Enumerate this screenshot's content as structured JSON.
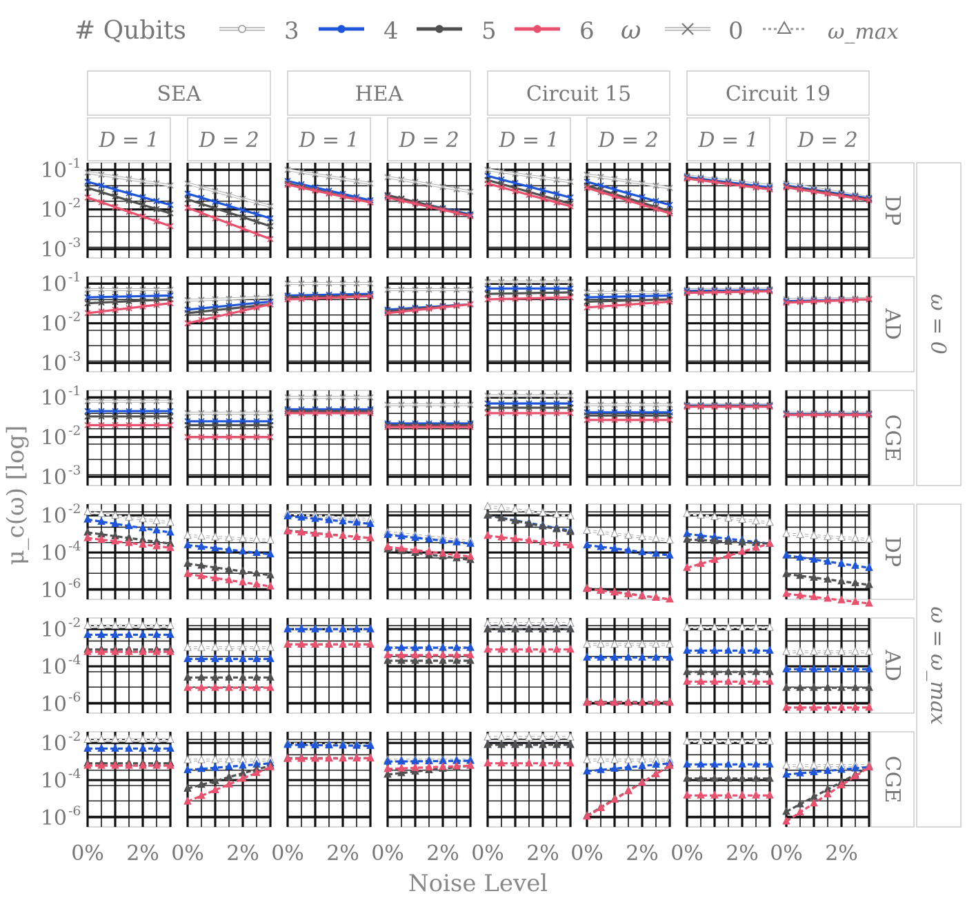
{
  "legend": {
    "qubits_label": "# Qubits",
    "qubit_entries": [
      {
        "label": "3",
        "color": "#ffffff",
        "edge": "#9a9a9a"
      },
      {
        "label": "4",
        "color": "#1f55d8",
        "edge": "#1f55d8"
      },
      {
        "label": "5",
        "color": "#505050",
        "edge": "#505050"
      },
      {
        "label": "6",
        "color": "#e8526e",
        "edge": "#e8526e"
      }
    ],
    "omega_label": "ω",
    "omega_entries": [
      {
        "label": "0",
        "style": "solid",
        "marker": "x"
      },
      {
        "label": "ω_max",
        "style": "dashed",
        "marker": "triangle"
      }
    ]
  },
  "strips": {
    "ansatz": [
      "SEA",
      "HEA",
      "Circuit 15",
      "Circuit 19"
    ],
    "depth": [
      "D = 1",
      "D = 2"
    ],
    "noise": [
      "DP",
      "AD",
      "CGE"
    ],
    "omega_groups": [
      "ω = 0",
      "ω = ω_max"
    ]
  },
  "axes": {
    "xlabel": "Noise Level",
    "ylabel": "μ_c(ω) [log]",
    "xticks": [
      "0%",
      "2%"
    ],
    "yticks_top": [
      "10-1",
      "10-2",
      "10-3"
    ],
    "yticks_bottom": [
      "10-2",
      "10-4",
      "10-6"
    ]
  },
  "chart_data": {
    "type": "line",
    "x": [
      0,
      0.5,
      1,
      1.5,
      2,
      2.5,
      3
    ],
    "x_unit": "%",
    "xlim": [
      0,
      3
    ],
    "ylim_top": [
      0.0006,
      0.15
    ],
    "ylim_bottom": [
      3e-07,
      0.04
    ],
    "log_y": true,
    "qubits": [
      "3",
      "4",
      "5",
      "6"
    ],
    "rows": [
      "DP_0",
      "AD_0",
      "CGE_0",
      "DP_max",
      "AD_max",
      "CGE_max"
    ],
    "columns": [
      "SEA_1",
      "SEA_2",
      "HEA_1",
      "HEA_2",
      "C15_1",
      "C15_2",
      "C19_1",
      "C19_2"
    ],
    "series": {
      "DP_0": {
        "SEA_1": [
          [
            0.085,
            0.04
          ],
          [
            0.05,
            0.013
          ],
          [
            0.035,
            0.008
          ],
          [
            0.02,
            0.0038
          ]
        ],
        "SEA_2": [
          [
            0.045,
            0.012
          ],
          [
            0.025,
            0.006
          ],
          [
            0.018,
            0.0038
          ],
          [
            0.011,
            0.0018
          ]
        ],
        "HEA_1": [
          [
            0.1,
            0.045
          ],
          [
            0.052,
            0.017
          ],
          [
            0.045,
            0.015
          ],
          [
            0.042,
            0.015
          ]
        ],
        "HEA_2": [
          [
            0.065,
            0.028
          ],
          [
            0.022,
            0.0075
          ],
          [
            0.023,
            0.007
          ],
          [
            0.02,
            0.0068
          ]
        ],
        "C15_1": [
          [
            0.1,
            0.05
          ],
          [
            0.07,
            0.02
          ],
          [
            0.055,
            0.014
          ],
          [
            0.045,
            0.012
          ]
        ],
        "C15_2": [
          [
            0.075,
            0.035
          ],
          [
            0.05,
            0.013
          ],
          [
            0.04,
            0.009
          ],
          [
            0.035,
            0.008
          ]
        ],
        "C19_1": [
          [
            0.07,
            0.04
          ],
          [
            0.065,
            0.036
          ],
          [
            0.062,
            0.033
          ],
          [
            0.06,
            0.032
          ]
        ],
        "C19_2": [
          [
            0.045,
            0.02
          ],
          [
            0.04,
            0.019
          ],
          [
            0.038,
            0.018
          ],
          [
            0.036,
            0.017
          ]
        ]
      },
      "AD_0": {
        "SEA_1": [
          [
            0.07,
            0.07
          ],
          [
            0.045,
            0.05
          ],
          [
            0.032,
            0.04
          ],
          [
            0.018,
            0.032
          ]
        ],
        "SEA_2": [
          [
            0.038,
            0.045
          ],
          [
            0.022,
            0.035
          ],
          [
            0.018,
            0.03
          ],
          [
            0.01,
            0.03
          ]
        ],
        "HEA_1": [
          [
            0.1,
            0.1
          ],
          [
            0.05,
            0.055
          ],
          [
            0.045,
            0.05
          ],
          [
            0.04,
            0.048
          ]
        ],
        "HEA_2": [
          [
            0.07,
            0.07
          ],
          [
            0.022,
            0.03
          ],
          [
            0.02,
            0.03
          ],
          [
            0.018,
            0.03
          ]
        ],
        "C15_1": [
          [
            0.11,
            0.11
          ],
          [
            0.075,
            0.075
          ],
          [
            0.055,
            0.06
          ],
          [
            0.04,
            0.045
          ]
        ],
        "C15_2": [
          [
            0.06,
            0.06
          ],
          [
            0.045,
            0.05
          ],
          [
            0.035,
            0.04
          ],
          [
            0.025,
            0.035
          ]
        ],
        "C19_1": [
          [
            0.07,
            0.072
          ],
          [
            0.065,
            0.068
          ],
          [
            0.06,
            0.065
          ],
          [
            0.058,
            0.064
          ]
        ],
        "C19_2": [
          [
            0.04,
            0.042
          ],
          [
            0.036,
            0.04
          ],
          [
            0.034,
            0.04
          ],
          [
            0.033,
            0.04
          ]
        ]
      },
      "CGE_0": {
        "SEA_1": [
          [
            0.08,
            0.08
          ],
          [
            0.045,
            0.045
          ],
          [
            0.033,
            0.033
          ],
          [
            0.02,
            0.02
          ]
        ],
        "SEA_2": [
          [
            0.04,
            0.04
          ],
          [
            0.025,
            0.025
          ],
          [
            0.02,
            0.02
          ],
          [
            0.01,
            0.01
          ]
        ],
        "HEA_1": [
          [
            0.1,
            0.1
          ],
          [
            0.05,
            0.05
          ],
          [
            0.045,
            0.045
          ],
          [
            0.04,
            0.04
          ]
        ],
        "HEA_2": [
          [
            0.065,
            0.065
          ],
          [
            0.022,
            0.022
          ],
          [
            0.02,
            0.02
          ],
          [
            0.018,
            0.018
          ]
        ],
        "C15_1": [
          [
            0.11,
            0.11
          ],
          [
            0.07,
            0.07
          ],
          [
            0.055,
            0.055
          ],
          [
            0.04,
            0.04
          ]
        ],
        "C15_2": [
          [
            0.065,
            0.065
          ],
          [
            0.042,
            0.042
          ],
          [
            0.035,
            0.035
          ],
          [
            0.027,
            0.027
          ]
        ],
        "C19_1": [
          [
            0.065,
            0.065
          ],
          [
            0.062,
            0.062
          ],
          [
            0.06,
            0.06
          ],
          [
            0.058,
            0.058
          ]
        ],
        "C19_2": [
          [
            0.04,
            0.04
          ],
          [
            0.038,
            0.038
          ],
          [
            0.037,
            0.037
          ],
          [
            0.036,
            0.036
          ]
        ]
      },
      "DP_max": {
        "SEA_1": [
          [
            0.015,
            0.004
          ],
          [
            0.006,
            0.0012
          ],
          [
            0.0012,
            0.0003
          ],
          [
            0.0006,
            0.00018
          ]
        ],
        "SEA_2": [
          [
            0.0008,
            0.00045
          ],
          [
            0.00025,
            8e-05
          ],
          [
            2.5e-05,
            6e-06
          ],
          [
            7e-06,
            1.5e-06
          ]
        ],
        "HEA_1": [
          [
            0.012,
            0.006
          ],
          [
            0.009,
            0.0035
          ],
          [
            0.0015,
            0.0006
          ],
          [
            0.0014,
            0.0006
          ]
        ],
        "HEA_2": [
          [
            0.0012,
            0.0004
          ],
          [
            0.0009,
            0.0003
          ],
          [
            0.00015,
            4e-05
          ],
          [
            0.0002,
            6e-05
          ]
        ],
        "C15_1": [
          [
            0.03,
            0.009
          ],
          [
            0.01,
            0.0015
          ],
          [
            0.01,
            0.0013
          ],
          [
            0.0008,
            0.00025
          ]
        ],
        "C15_2": [
          [
            0.0015,
            0.00045
          ],
          [
            0.00025,
            7e-05
          ],
          [
            1.2e-06,
            3e-07
          ],
          [
            1.1e-06,
            3e-07
          ]
        ],
        "C19_1": [
          [
            0.012,
            0.004
          ],
          [
            0.001,
            0.0003
          ],
          [
            0.0005,
            0.0003
          ],
          [
            1.5e-05,
            0.0003
          ]
        ],
        "C19_2": [
          [
            0.001,
            0.0005
          ],
          [
            7e-05,
            1.5e-05
          ],
          [
            7e-06,
            1.8e-06
          ],
          [
            6e-07,
            1.8e-07
          ]
        ]
      },
      "AD_max": {
        "SEA_1": [
          [
            0.015,
            0.015
          ],
          [
            0.005,
            0.005
          ],
          [
            0.0008,
            0.0008
          ],
          [
            0.0006,
            0.0006
          ]
        ],
        "SEA_2": [
          [
            0.001,
            0.001
          ],
          [
            0.00025,
            0.00025
          ],
          [
            2.5e-05,
            2.5e-05
          ],
          [
            7e-06,
            7e-06
          ]
        ],
        "HEA_1": [
          [
            0.01,
            0.01
          ],
          [
            0.01,
            0.01
          ],
          [
            0.0015,
            0.0015
          ],
          [
            0.0015,
            0.0015
          ]
        ],
        "HEA_2": [
          [
            0.001,
            0.001
          ],
          [
            0.001,
            0.001
          ],
          [
            0.0002,
            0.0002
          ],
          [
            0.0004,
            0.0004
          ]
        ],
        "C15_1": [
          [
            0.02,
            0.02
          ],
          [
            0.01,
            0.01
          ],
          [
            0.01,
            0.01
          ],
          [
            0.0008,
            0.0008
          ]
        ],
        "C15_2": [
          [
            0.0015,
            0.0015
          ],
          [
            0.0003,
            0.0003
          ],
          [
            1.2e-06,
            1.2e-06
          ],
          [
            1.1e-06,
            1.1e-06
          ]
        ],
        "C19_1": [
          [
            0.012,
            0.012
          ],
          [
            0.0007,
            0.0007
          ],
          [
            5e-05,
            5e-05
          ],
          [
            1.5e-05,
            1.5e-05
          ]
        ],
        "C19_2": [
          [
            0.0006,
            0.0006
          ],
          [
            7e-05,
            7e-05
          ],
          [
            7e-06,
            7e-06
          ],
          [
            6e-07,
            6e-07
          ]
        ]
      },
      "CGE_max": {
        "SEA_1": [
          [
            0.015,
            0.015
          ],
          [
            0.005,
            0.005
          ],
          [
            0.0008,
            0.0008
          ],
          [
            0.0006,
            0.0006
          ]
        ],
        "SEA_2": [
          [
            0.0012,
            0.0012
          ],
          [
            0.00035,
            0.0008
          ],
          [
            3.5e-05,
            0.0006
          ],
          [
            7e-06,
            0.0005
          ]
        ],
        "HEA_1": [
          [
            0.009,
            0.008
          ],
          [
            0.008,
            0.007
          ],
          [
            0.0015,
            0.0015
          ],
          [
            0.0014,
            0.0015
          ]
        ],
        "HEA_2": [
          [
            0.0012,
            0.0012
          ],
          [
            0.001,
            0.0011
          ],
          [
            0.0002,
            0.0006
          ],
          [
            0.0004,
            0.0006
          ]
        ],
        "C15_1": [
          [
            0.02,
            0.02
          ],
          [
            0.008,
            0.008
          ],
          [
            0.008,
            0.008
          ],
          [
            0.0008,
            0.0008
          ]
        ],
        "C15_2": [
          [
            0.0012,
            0.0012
          ],
          [
            0.0003,
            0.0008
          ],
          [
            1.2e-06,
            0.0006
          ],
          [
            1.1e-06,
            0.0006
          ]
        ],
        "C19_1": [
          [
            0.012,
            0.012
          ],
          [
            0.0007,
            0.0007
          ],
          [
            0.00012,
            0.00012
          ],
          [
            1.5e-05,
            1.5e-05
          ]
        ],
        "C19_2": [
          [
            0.0006,
            0.0006
          ],
          [
            0.0002,
            0.0005
          ],
          [
            2e-06,
            0.0005
          ],
          [
            6e-07,
            0.0005
          ]
        ]
      }
    }
  }
}
